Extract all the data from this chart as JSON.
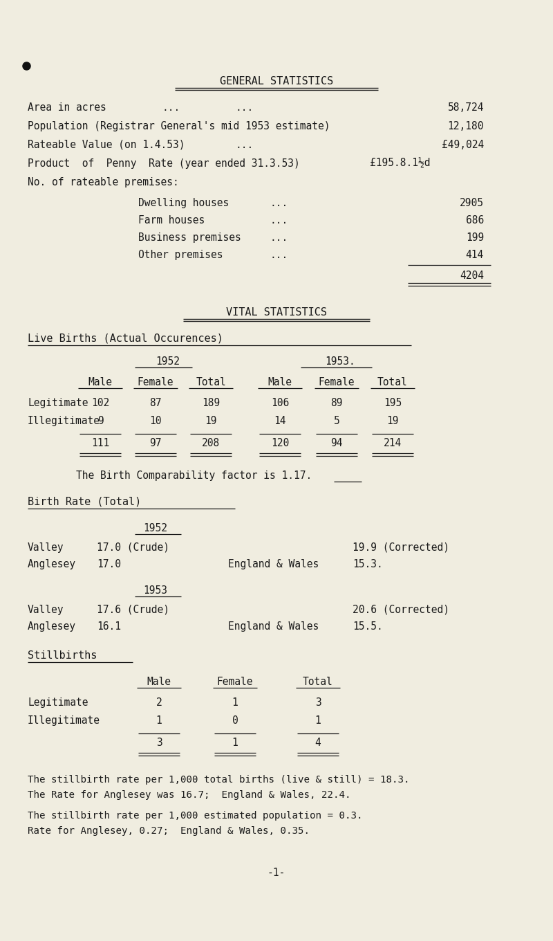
{
  "bg_color": "#f0ede0",
  "text_color": "#1a1a1a",
  "title1": "GENERAL STATISTICS",
  "title2": "VITAL STATISTICS",
  "premises": [
    [
      "Dwelling houses",
      "...",
      "2905"
    ],
    [
      "Farm houses",
      "...",
      "686"
    ],
    [
      "Business premises",
      "...",
      "199"
    ],
    [
      "Other premises",
      "...",
      "414"
    ]
  ],
  "premises_total": "4204",
  "birth_headers_col": [
    "Male",
    "Female",
    "Total",
    "Male",
    "Female",
    "Total"
  ],
  "birth_rows": [
    [
      "Legitimate",
      "102",
      "87",
      "189",
      "106",
      "89",
      "195"
    ],
    [
      "Illegitimate",
      "9",
      "10",
      "19",
      "14",
      "5",
      "19"
    ]
  ],
  "birth_totals": [
    "111",
    "97",
    "208",
    "120",
    "94",
    "214"
  ],
  "birth_comparability": "The Birth Comparability factor is 1.17.",
  "stillbirths_headers": [
    "Male",
    "Female",
    "Total"
  ],
  "stillbirths_rows": [
    [
      "Legitimate",
      "2",
      "1",
      "3"
    ],
    [
      "Illegitimate",
      "1",
      "0",
      "1"
    ]
  ],
  "stillbirths_totals": [
    "3",
    "1",
    "4"
  ],
  "stillbirth_notes": [
    "The stillbirth rate per 1,000 total births (live & still) = 18.3.",
    "The Rate for Anglesey was 16.7;  England & Wales, 22.4.",
    "The stillbirth rate per 1,000 estimated population = 0.3.",
    "Rate for Anglesey, 0.27;  England & Wales, 0.35."
  ],
  "page_number": "-1-"
}
